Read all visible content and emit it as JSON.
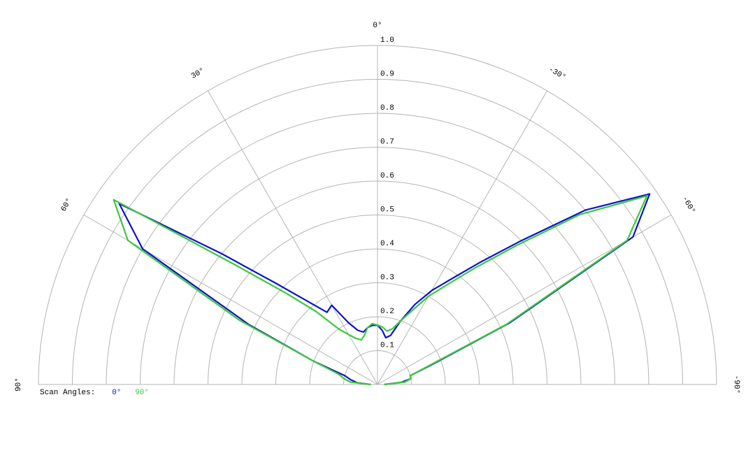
{
  "chart_data": {
    "type": "polar",
    "legend_title": "Scan Angles:",
    "theta": [
      90,
      85,
      80,
      75,
      70,
      65,
      60,
      55,
      50,
      45,
      40,
      35,
      30,
      25,
      20,
      15,
      10,
      5,
      0,
      -5,
      -10,
      -15,
      -20,
      -25,
      -30,
      -35,
      -40,
      -45,
      -50,
      -55,
      -60,
      -65,
      -70,
      -75,
      -80,
      -85,
      -90
    ],
    "series": [
      {
        "name": "0°",
        "color": "#0a14c8",
        "values": [
          0.02,
          0.06,
          0.08,
          0.1,
          0.2,
          0.42,
          0.8,
          0.93,
          0.6,
          0.42,
          0.32,
          0.26,
          0.27,
          0.2,
          0.17,
          0.16,
          0.17,
          0.175,
          0.175,
          0.16,
          0.14,
          0.15,
          0.2,
          0.26,
          0.32,
          0.38,
          0.47,
          0.6,
          0.8,
          0.98,
          0.87,
          0.43,
          0.17,
          0.1,
          0.1,
          0.07,
          0.02
        ]
      },
      {
        "name": "90°",
        "color": "#3cc83c",
        "values": [
          0.02,
          0.08,
          0.1,
          0.12,
          0.2,
          0.45,
          0.85,
          0.95,
          0.55,
          0.38,
          0.28,
          0.2,
          0.17,
          0.15,
          0.14,
          0.15,
          0.17,
          0.18,
          0.175,
          0.17,
          0.16,
          0.17,
          0.2,
          0.24,
          0.3,
          0.36,
          0.45,
          0.58,
          0.78,
          0.97,
          0.85,
          0.42,
          0.16,
          0.1,
          0.1,
          0.08,
          0.02
        ]
      }
    ],
    "rlim": [
      0,
      1
    ],
    "rticks": [
      0.1,
      0.2,
      0.3,
      0.4,
      0.5,
      0.6,
      0.7,
      0.8,
      0.9,
      {
        "value": 1,
        "label": "1.0"
      }
    ],
    "thetaticks": [
      {
        "value": 90,
        "label": "90°"
      },
      {
        "value": 60,
        "label": "60°"
      },
      {
        "value": 30,
        "label": "30°"
      },
      {
        "value": 0,
        "label": "0°"
      },
      {
        "value": -30,
        "label": "-30°"
      },
      {
        "value": -60,
        "label": "-60°"
      },
      {
        "value": -90,
        "label": "-90°"
      }
    ],
    "grid": true
  }
}
